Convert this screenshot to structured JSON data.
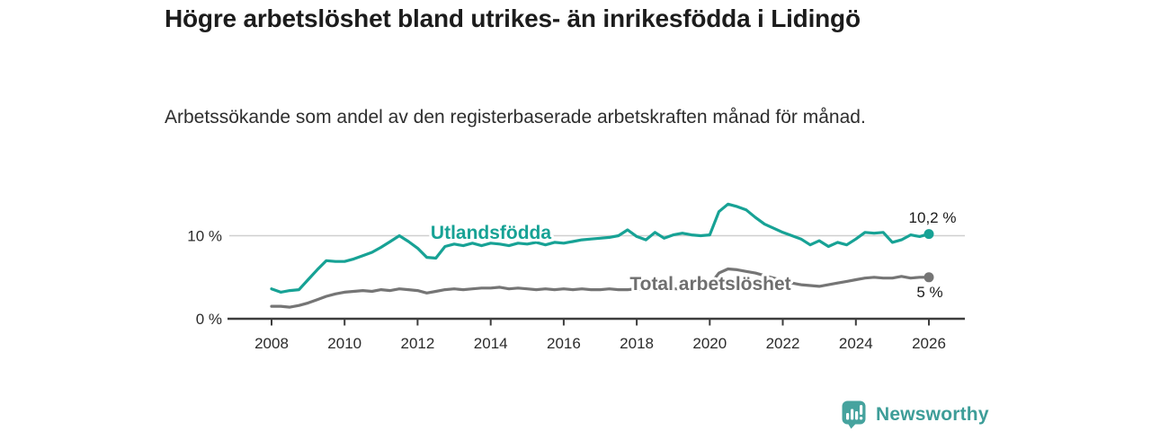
{
  "title": "Högre arbetslöshet bland utrikes- än inrikesfödda i Lidingö",
  "subtitle": "Arbetssökande som andel av den registerbaserade arbetskraften månad för månad.",
  "branding": {
    "logo_text": "Newsworthy",
    "logo_icon": "bar-chart-speech-bubble-icon"
  },
  "colors": {
    "teal_line": "#17A295",
    "gray_line": "#757575",
    "gray_label": "#6F6F6F",
    "axis": "#3d3d3d",
    "gridline": "#cfcfcf",
    "text": "#1c1c1c",
    "logo_teal": "#46A39E"
  },
  "chart_data": {
    "type": "line",
    "title": "Högre arbetslöshet bland utrikes- än inrikesfödda i Lidingö",
    "subtitle": "Arbetssökande som andel av den registerbaserade arbetskraften månad för månad.",
    "legend_position": "inline-labels",
    "grid": "horizontal gridline at 10 % only",
    "x_start_year": 2008,
    "x_step_years": 0.25,
    "x_ticks": [
      {
        "year": 2008,
        "label": "2008"
      },
      {
        "year": 2010,
        "label": "2010"
      },
      {
        "year": 2012,
        "label": "2012"
      },
      {
        "year": 2014,
        "label": "2014"
      },
      {
        "year": 2016,
        "label": "2016"
      },
      {
        "year": 2018,
        "label": "2018"
      },
      {
        "year": 2020,
        "label": "2020"
      },
      {
        "year": 2022,
        "label": "2022"
      },
      {
        "year": 2024,
        "label": "2024"
      },
      {
        "year": 2026,
        "label": "2026"
      }
    ],
    "y_axis": {
      "ticks": [
        {
          "value": 10,
          "label": "10 %"
        },
        {
          "value": 0,
          "label": "0 %"
        }
      ],
      "ylim": [
        0,
        15
      ]
    },
    "series": [
      {
        "id": "utlandsfodda",
        "name": "Utlandsfödda",
        "color": "#17A295",
        "end_label": "10,2 %",
        "latest_value": 10.2,
        "values": [
          3.6,
          3.2,
          3.4,
          3.5,
          4.7,
          5.9,
          7.0,
          6.9,
          6.9,
          7.2,
          7.6,
          8.0,
          8.6,
          9.3,
          10.0,
          9.3,
          8.5,
          7.4,
          7.3,
          8.7,
          9.0,
          8.8,
          9.1,
          8.8,
          9.1,
          9.0,
          8.8,
          9.1,
          9.0,
          9.2,
          8.9,
          9.2,
          9.1,
          9.3,
          9.5,
          9.6,
          9.7,
          9.8,
          10.0,
          10.7,
          9.9,
          9.5,
          10.4,
          9.7,
          10.1,
          10.3,
          10.1,
          10.0,
          10.1,
          12.9,
          13.8,
          13.5,
          13.1,
          12.2,
          11.4,
          10.9,
          10.4,
          10.0,
          9.6,
          8.9,
          9.4,
          8.7,
          9.2,
          8.9,
          9.6,
          10.4,
          10.3,
          10.4,
          9.2,
          9.5,
          10.1,
          9.9,
          10.2
        ]
      },
      {
        "id": "total-arbetsloshet",
        "name": "Total arbetslöshet",
        "color": "#757575",
        "end_label": "5 %",
        "latest_value": 5.0,
        "values": [
          1.5,
          1.5,
          1.4,
          1.6,
          1.9,
          2.3,
          2.7,
          3.0,
          3.2,
          3.3,
          3.4,
          3.3,
          3.5,
          3.4,
          3.6,
          3.5,
          3.4,
          3.1,
          3.3,
          3.5,
          3.6,
          3.5,
          3.6,
          3.7,
          3.7,
          3.8,
          3.6,
          3.7,
          3.6,
          3.5,
          3.6,
          3.5,
          3.6,
          3.5,
          3.6,
          3.5,
          3.5,
          3.6,
          3.5,
          3.5,
          3.6,
          3.5,
          3.6,
          3.5,
          3.6,
          3.6,
          3.7,
          3.8,
          4.1,
          5.5,
          6.0,
          5.9,
          5.7,
          5.5,
          5.2,
          4.9,
          4.6,
          4.3,
          4.1,
          4.0,
          3.9,
          4.1,
          4.3,
          4.5,
          4.7,
          4.9,
          5.0,
          4.9,
          4.9,
          5.1,
          4.9,
          5.0,
          5.0
        ]
      }
    ]
  }
}
